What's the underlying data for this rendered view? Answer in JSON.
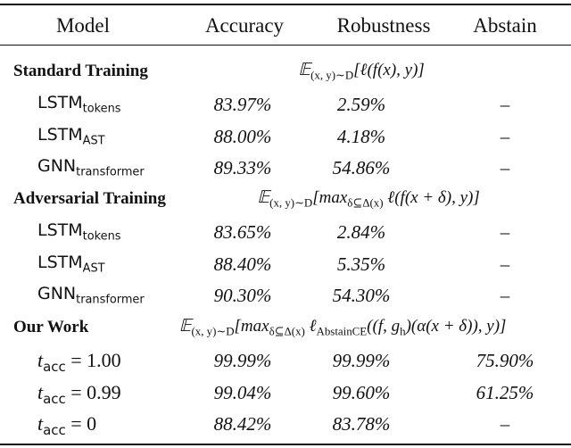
{
  "header": [
    "Model",
    "Accuracy",
    "Robustness",
    "Abstain"
  ],
  "sections": [
    {
      "title": "Standard Training",
      "formula": [
        {
          "t": "𝔼"
        },
        {
          "t": "(x, y)∼D",
          "sub": true
        },
        {
          "t": "[ℓ(f(x), y)]"
        }
      ],
      "rows": [
        {
          "model": {
            "name": "LSTM",
            "sub": "tokens",
            "style": "code"
          },
          "cells": [
            "83.97%",
            "2.59%",
            "–"
          ]
        },
        {
          "model": {
            "name": "LSTM",
            "sub": "AST",
            "style": "code"
          },
          "cells": [
            "88.00%",
            "4.18%",
            "–"
          ]
        },
        {
          "model": {
            "name": "GNN",
            "sub": "transformer",
            "style": "code"
          },
          "cells": [
            "89.33%",
            "54.86%",
            "–"
          ]
        }
      ]
    },
    {
      "title": "Adversarial Training",
      "formula": [
        {
          "t": "𝔼"
        },
        {
          "t": "(x, y)∼D",
          "sub": true
        },
        {
          "t": "[max"
        },
        {
          "t": "δ⊆Δ(x)",
          "sub": true
        },
        {
          "t": " ℓ(f(x + δ), y)]"
        }
      ],
      "rows": [
        {
          "model": {
            "name": "LSTM",
            "sub": "tokens",
            "style": "code"
          },
          "cells": [
            "83.65%",
            "2.84%",
            "–"
          ]
        },
        {
          "model": {
            "name": "LSTM",
            "sub": "AST",
            "style": "code"
          },
          "cells": [
            "88.40%",
            "5.35%",
            "–"
          ]
        },
        {
          "model": {
            "name": "GNN",
            "sub": "transformer",
            "style": "code"
          },
          "cells": [
            "90.30%",
            "54.30%",
            "–"
          ]
        }
      ]
    },
    {
      "title": "Our Work",
      "formula": [
        {
          "t": "𝔼"
        },
        {
          "t": "(x, y)∼D",
          "sub": true
        },
        {
          "t": "[max"
        },
        {
          "t": "δ⊆Δ(x)",
          "sub": true
        },
        {
          "t": " ℓ"
        },
        {
          "t": "AbstainCE",
          "sub": true
        },
        {
          "t": "((f, g"
        },
        {
          "t": "h",
          "sub": true
        },
        {
          "t": ")(α(x + δ)), y)]"
        }
      ],
      "rows": [
        {
          "model": {
            "name": "t",
            "sub": "acc",
            "rest": " = 1.00",
            "style": "math"
          },
          "cells": [
            "99.99%",
            "99.99%",
            "75.90%"
          ]
        },
        {
          "model": {
            "name": "t",
            "sub": "acc",
            "rest": " = 0.99",
            "style": "math"
          },
          "cells": [
            "99.04%",
            "99.60%",
            "61.25%"
          ]
        },
        {
          "model": {
            "name": "t",
            "sub": "acc",
            "rest": " = 0",
            "style": "math"
          },
          "cells": [
            "88.42%",
            "83.78%",
            "–"
          ]
        }
      ]
    }
  ]
}
